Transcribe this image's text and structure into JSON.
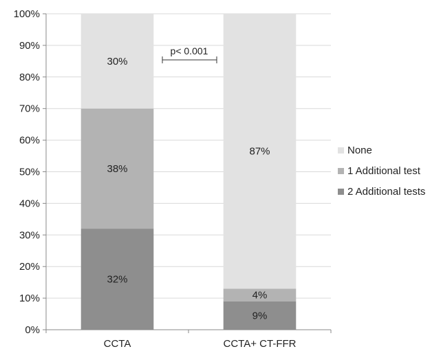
{
  "chart_data": {
    "type": "bar",
    "stacked": true,
    "percent": true,
    "categories": [
      "CCTA",
      "CCTA+ CT-FFR"
    ],
    "series": [
      {
        "name": "2 Additional tests",
        "values": [
          32,
          9
        ],
        "color": "#8e8e8e",
        "labels": [
          "32%",
          "9%"
        ]
      },
      {
        "name": "1 Additional test",
        "values": [
          38,
          4
        ],
        "color": "#b3b3b3",
        "labels": [
          "38%",
          "4%"
        ]
      },
      {
        "name": "None",
        "values": [
          30,
          87
        ],
        "color": "#e2e2e2",
        "labels": [
          "30%",
          "87%"
        ]
      }
    ],
    "legend_order": [
      "None",
      "1 Additional test",
      "2 Additional tests"
    ],
    "yticks": [
      "0%",
      "10%",
      "20%",
      "30%",
      "40%",
      "50%",
      "60%",
      "70%",
      "80%",
      "90%",
      "100%"
    ],
    "ylim": [
      0,
      100
    ],
    "grid": true,
    "legend_position": "right",
    "annotation": "p< 0.001",
    "title": "",
    "xlabel": "",
    "ylabel": ""
  }
}
